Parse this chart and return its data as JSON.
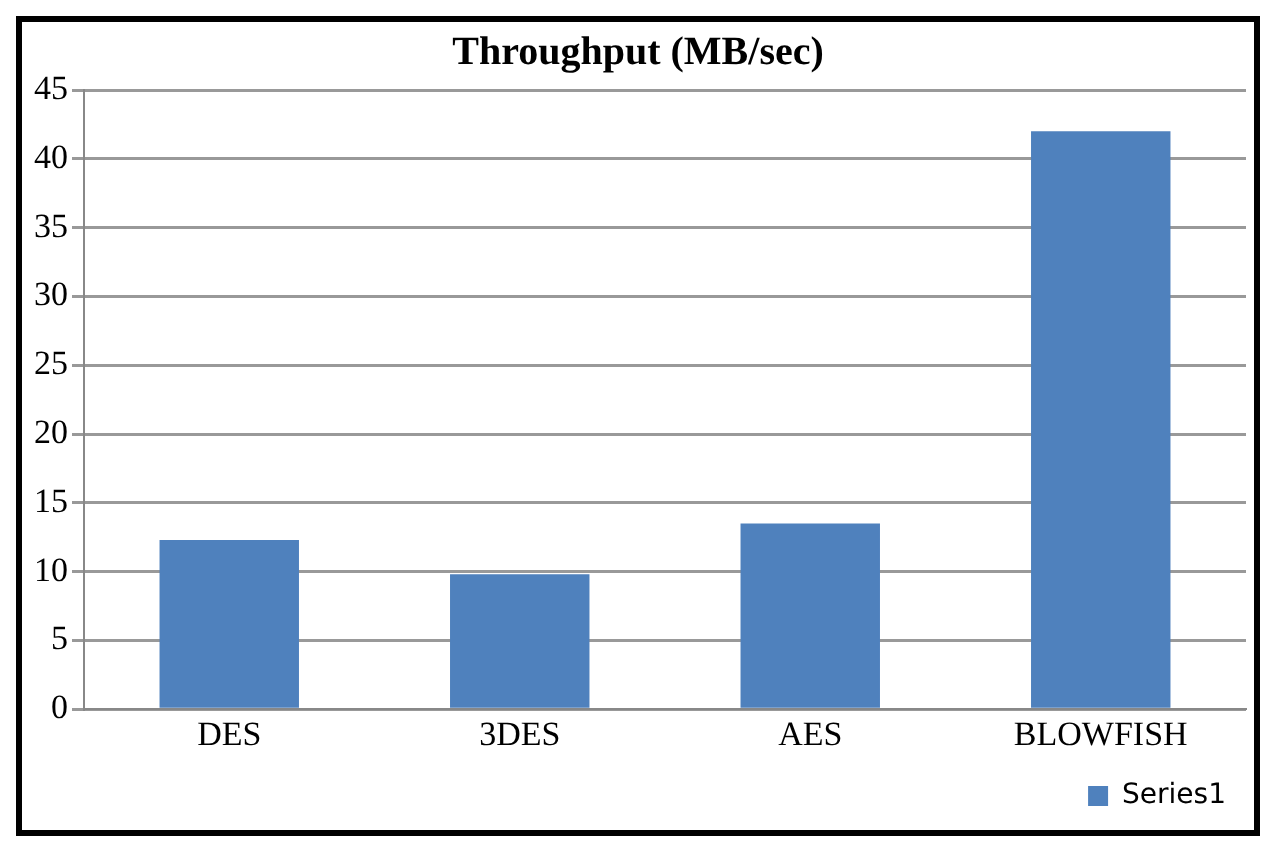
{
  "chart_data": {
    "type": "bar",
    "title": "Throughput (MB/sec)",
    "categories": [
      "DES",
      "3DES",
      "AES",
      "BLOWFISH"
    ],
    "series": [
      {
        "name": "Series1",
        "color": "#4f81bd",
        "values": [
          12.3,
          9.8,
          13.5,
          42
        ]
      }
    ],
    "ylim": [
      0,
      45
    ],
    "yticks": [
      0,
      5,
      10,
      15,
      20,
      25,
      30,
      35,
      40,
      45
    ],
    "grid": "y",
    "legend": "bottom right"
  }
}
